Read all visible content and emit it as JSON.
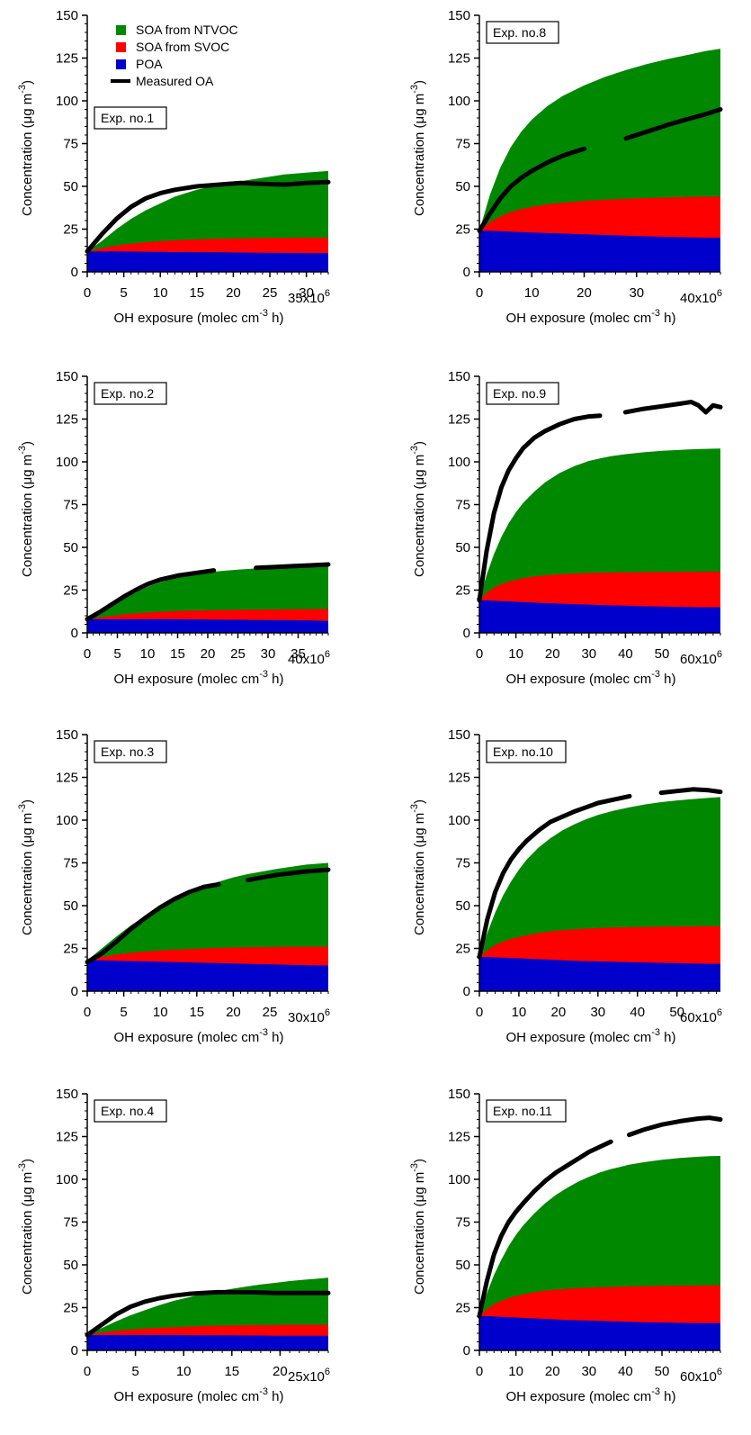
{
  "colors": {
    "ntvoc": "#008800",
    "svoc": "#ff0000",
    "poa": "#0000cc",
    "measured": "#000000",
    "frame": "#000000"
  },
  "legend": {
    "ntvoc": "SOA from NTVOC",
    "svoc": "SOA from SVOC",
    "poa": "POA",
    "measured": "Measured OA"
  },
  "axis_text": {
    "ylabel": "Concentration (μg m",
    "ylabel_sup": "-3",
    "ylabel_end": ")",
    "xlabel": "OH exposure (molec cm",
    "xlabel_sup": "-3",
    "xlabel_end": " h)",
    "multiplier_base": "x10",
    "multiplier_exp": "6"
  },
  "chart_data": [
    {
      "type": "area",
      "label": "Exp. no.1",
      "xlabel": "OH exposure (molec cm-3 h)",
      "ylabel": "Concentration (μg m-3)",
      "xlim": [
        0,
        33
      ],
      "xticks": [
        0,
        5,
        10,
        15,
        20,
        25,
        30
      ],
      "xmult": "35",
      "ylim": [
        0,
        150
      ],
      "yticks": [
        0,
        25,
        50,
        75,
        100,
        125,
        150
      ],
      "x": [
        0,
        2,
        4,
        6,
        8,
        10,
        12,
        15,
        18,
        21,
        24,
        27,
        30,
        33
      ],
      "series": [
        {
          "name": "POA",
          "values": [
            12,
            12,
            12,
            11.9,
            11.8,
            11.7,
            11.6,
            11.5,
            11.4,
            11.3,
            11.2,
            11.1,
            11.0,
            11
          ]
        },
        {
          "name": "SOA from SVOC",
          "values": [
            12,
            14,
            15.5,
            16.5,
            17.3,
            18,
            18.5,
            19,
            19.4,
            19.6,
            19.8,
            19.9,
            20,
            20
          ]
        },
        {
          "name": "SOA from NTVOC",
          "values": [
            12,
            18,
            25,
            31,
            36,
            40,
            44,
            48,
            51,
            53,
            55,
            57,
            58,
            59
          ]
        },
        {
          "name": "Measured OA",
          "values": [
            12,
            22,
            31,
            38,
            43,
            46,
            48,
            50,
            51,
            52,
            51.5,
            51,
            52,
            52.5
          ]
        }
      ]
    },
    {
      "type": "area",
      "label": "Exp. no.2",
      "xlabel": "OH exposure (molec cm-3 h)",
      "ylabel": "Concentration (μg m-3)",
      "xlim": [
        0,
        40
      ],
      "xticks": [
        0,
        5,
        10,
        15,
        20,
        25,
        30,
        35
      ],
      "xmult": "40",
      "ylim": [
        0,
        150
      ],
      "yticks": [
        0,
        25,
        50,
        75,
        100,
        125,
        150
      ],
      "x": [
        0,
        2,
        4,
        6,
        8,
        10,
        12,
        15,
        18,
        21,
        25,
        28,
        31,
        34,
        37,
        40
      ],
      "series": [
        {
          "name": "POA",
          "values": [
            8,
            8,
            8,
            8,
            8,
            8,
            8,
            8,
            7.9,
            7.8,
            7.7,
            7.6,
            7.5,
            7.4,
            7.3,
            7
          ]
        },
        {
          "name": "SOA from SVOC",
          "values": [
            8,
            9,
            10,
            10.8,
            11.4,
            11.9,
            12.3,
            12.8,
            13.1,
            13.3,
            13.5,
            13.6,
            13.7,
            13.8,
            13.9,
            14
          ]
        },
        {
          "name": "SOA from NTVOC",
          "values": [
            8,
            12,
            16,
            20,
            23.5,
            27,
            29.5,
            32.5,
            34.5,
            35.8,
            37,
            37.7,
            38.3,
            38.8,
            39.2,
            39.5
          ]
        },
        {
          "name": "Measured OA",
          "values": [
            8,
            12,
            16.5,
            21,
            25,
            28.5,
            31,
            33.5,
            35,
            36.5,
            null,
            38,
            38.5,
            39,
            39.5,
            40
          ]
        }
      ]
    },
    {
      "type": "area",
      "label": "Exp. no.3",
      "xlabel": "OH exposure (molec cm-3 h)",
      "ylabel": "Concentration (μg m-3)",
      "xlim": [
        0,
        33
      ],
      "xticks": [
        0,
        5,
        10,
        15,
        20,
        25
      ],
      "xmult": "30",
      "ylim": [
        0,
        150
      ],
      "yticks": [
        0,
        25,
        50,
        75,
        100,
        125,
        150
      ],
      "x": [
        0,
        2,
        4,
        6,
        8,
        10,
        12,
        14,
        16,
        18,
        20,
        22,
        24,
        26,
        28,
        30,
        33
      ],
      "series": [
        {
          "name": "POA",
          "values": [
            18,
            18,
            17.8,
            17.6,
            17.4,
            17.2,
            17,
            16.8,
            16.6,
            16.4,
            16.2,
            16,
            15.8,
            15.6,
            15.4,
            15.2,
            15
          ]
        },
        {
          "name": "SOA from SVOC",
          "values": [
            18,
            20,
            21.5,
            22.5,
            23.2,
            23.8,
            24.3,
            24.7,
            25,
            25.3,
            25.5,
            25.7,
            25.8,
            25.9,
            26,
            26,
            26
          ]
        },
        {
          "name": "SOA from NTVOC",
          "values": [
            18,
            25,
            32,
            38.5,
            44,
            49,
            53.5,
            57.5,
            61,
            64,
            66.5,
            68.5,
            70,
            71.5,
            72.8,
            74,
            75
          ]
        },
        {
          "name": "Measured OA",
          "values": [
            17,
            22,
            29,
            36.5,
            43,
            49,
            54,
            58,
            61,
            62.5,
            null,
            65,
            66.5,
            68,
            69,
            70,
            71
          ]
        }
      ]
    },
    {
      "type": "area",
      "label": "Exp. no.4",
      "xlabel": "OH exposure (molec cm-3 h)",
      "ylabel": "Concentration (μg m-3)",
      "xlim": [
        0,
        25
      ],
      "xticks": [
        0,
        5,
        10,
        15,
        20
      ],
      "xmult": "25",
      "ylim": [
        0,
        150
      ],
      "yticks": [
        0,
        25,
        50,
        75,
        100,
        125,
        150
      ],
      "x": [
        0,
        1.5,
        3,
        4.5,
        6,
        7.5,
        9,
        10.5,
        12,
        13.5,
        15,
        16.5,
        18,
        19.5,
        21,
        22.5,
        24,
        25
      ],
      "series": [
        {
          "name": "POA",
          "values": [
            9,
            9,
            9,
            9,
            9,
            9,
            9,
            8.9,
            8.9,
            8.8,
            8.8,
            8.7,
            8.7,
            8.6,
            8.6,
            8.5,
            8.5,
            8.5
          ]
        },
        {
          "name": "SOA from SVOC",
          "values": [
            9,
            10.5,
            11.5,
            12.2,
            12.8,
            13.2,
            13.6,
            13.9,
            14.2,
            14.4,
            14.6,
            14.7,
            14.8,
            14.9,
            15,
            15,
            15,
            15
          ]
        },
        {
          "name": "SOA from NTVOC",
          "values": [
            9,
            13,
            17,
            20.5,
            23.5,
            26.5,
            29,
            31,
            33,
            34.5,
            36,
            37.3,
            38.5,
            39.5,
            40.5,
            41.3,
            42,
            42.5
          ]
        },
        {
          "name": "Measured OA",
          "values": [
            9,
            15,
            21,
            25.5,
            28.5,
            30.5,
            32,
            33,
            33.5,
            34,
            34,
            34,
            33.8,
            33.5,
            33.5,
            33.5,
            33.5,
            33.5
          ]
        }
      ]
    },
    {
      "type": "area",
      "label": "Exp. no.8",
      "xlabel": "OH exposure (molec cm-3 h)",
      "ylabel": "Concentration (μg m-3)",
      "xlim": [
        0,
        46
      ],
      "xticks": [
        0,
        10,
        20,
        30
      ],
      "xmult": "40",
      "ylim": [
        0,
        150
      ],
      "yticks": [
        0,
        25,
        50,
        75,
        100,
        125,
        150
      ],
      "x": [
        0,
        2,
        4,
        6,
        8,
        10,
        13,
        16,
        20,
        24,
        28,
        32,
        36,
        40,
        43,
        46
      ],
      "series": [
        {
          "name": "POA",
          "values": [
            24,
            24,
            23.8,
            23.5,
            23.3,
            23,
            22.7,
            22.4,
            22,
            21.6,
            21.2,
            20.8,
            20.5,
            20.2,
            20,
            20
          ]
        },
        {
          "name": "SOA from SVOC",
          "values": [
            24,
            29,
            32.5,
            35,
            36.8,
            38,
            39.5,
            40.5,
            41.5,
            42.2,
            42.8,
            43.2,
            43.5,
            43.8,
            44,
            44
          ]
        },
        {
          "name": "SOA from NTVOC",
          "values": [
            24,
            45,
            61,
            73,
            82,
            89,
            97,
            103,
            109,
            114,
            118,
            121.5,
            124.5,
            127,
            129,
            130.5
          ]
        },
        {
          "name": "Measured OA",
          "values": [
            24,
            34,
            43,
            50,
            55,
            59,
            64,
            68,
            72,
            null,
            78,
            82,
            86,
            89.5,
            92,
            95
          ]
        }
      ]
    },
    {
      "type": "area",
      "label": "Exp. no.9",
      "xlabel": "OH exposure (molec cm-3 h)",
      "ylabel": "Concentration (μg m-3)",
      "xlim": [
        0,
        66
      ],
      "xticks": [
        0,
        10,
        20,
        30,
        40,
        50
      ],
      "xmult": "60",
      "ylim": [
        0,
        150
      ],
      "yticks": [
        0,
        25,
        50,
        75,
        100,
        125,
        150
      ],
      "x": [
        0,
        2,
        4,
        6,
        8,
        10,
        12,
        15,
        18,
        22,
        26,
        30,
        33,
        36,
        40,
        45,
        50,
        55,
        58,
        60,
        62,
        64,
        66
      ],
      "series": [
        {
          "name": "POA",
          "values": [
            19,
            19,
            18.8,
            18.6,
            18.4,
            18.2,
            18,
            17.7,
            17.4,
            17.1,
            16.8,
            16.5,
            16.3,
            16.1,
            15.9,
            15.6,
            15.4,
            15.2,
            15.1,
            15,
            15,
            15,
            15
          ]
        },
        {
          "name": "SOA from SVOC",
          "values": [
            19,
            23.5,
            26.5,
            28.5,
            30,
            31,
            32,
            33,
            33.7,
            34.3,
            34.7,
            35,
            35.2,
            35.3,
            35.4,
            35.5,
            35.6,
            35.7,
            35.8,
            35.8,
            35.8,
            35.8,
            35.8
          ]
        },
        {
          "name": "SOA from NTVOC",
          "values": [
            19,
            34,
            46,
            56,
            64,
            70.5,
            76,
            82.5,
            88,
            93.5,
            97.5,
            100.5,
            102,
            103.3,
            104.5,
            105.6,
            106.4,
            107,
            107.3,
            107.5,
            107.6,
            107.7,
            107.8
          ]
        },
        {
          "name": "Measured OA",
          "values": [
            19,
            48,
            70,
            85,
            95,
            102,
            108,
            114,
            118,
            122,
            125,
            126.5,
            127,
            null,
            129,
            131,
            132.5,
            134,
            135,
            133,
            129,
            133,
            132
          ]
        }
      ]
    },
    {
      "type": "area",
      "label": "Exp. no.10",
      "xlabel": "OH exposure (molec cm-3 h)",
      "ylabel": "Concentration (μg m-3)",
      "xlim": [
        0,
        61
      ],
      "xticks": [
        0,
        10,
        20,
        30,
        40,
        50
      ],
      "xmult": "60",
      "ylim": [
        0,
        150
      ],
      "yticks": [
        0,
        25,
        50,
        75,
        100,
        125,
        150
      ],
      "x": [
        0,
        2,
        4,
        6,
        8,
        10,
        12,
        15,
        18,
        21,
        24,
        27,
        30,
        34,
        38,
        42,
        46,
        50,
        54,
        58,
        61
      ],
      "series": [
        {
          "name": "POA",
          "values": [
            20,
            20,
            19.8,
            19.6,
            19.4,
            19.2,
            19,
            18.7,
            18.4,
            18.1,
            17.8,
            17.6,
            17.4,
            17.2,
            17,
            16.8,
            16.6,
            16.4,
            16.2,
            16,
            16
          ]
        },
        {
          "name": "SOA from SVOC",
          "values": [
            20,
            24,
            27,
            29,
            30.6,
            31.8,
            32.8,
            34,
            35,
            35.7,
            36.2,
            36.6,
            36.9,
            37.2,
            37.4,
            37.6,
            37.7,
            37.8,
            37.9,
            38,
            38
          ]
        },
        {
          "name": "SOA from NTVOC",
          "values": [
            20,
            34,
            46,
            56,
            64,
            71,
            77,
            84,
            89.5,
            94,
            97.5,
            100.5,
            103,
            105.5,
            107.5,
            109.2,
            110.5,
            111.5,
            112.3,
            113,
            113.5
          ]
        },
        {
          "name": "Measured OA",
          "values": [
            20,
            42,
            58,
            69,
            77,
            83,
            88,
            94,
            99,
            102,
            105,
            107.5,
            110,
            112,
            114,
            null,
            116,
            117,
            118,
            117.5,
            116.5
          ]
        }
      ]
    },
    {
      "type": "area",
      "label": "Exp. no.11",
      "xlabel": "OH exposure (molec cm-3 h)",
      "ylabel": "Concentration (μg m-3)",
      "xlim": [
        0,
        66
      ],
      "xticks": [
        0,
        10,
        20,
        30,
        40,
        50
      ],
      "xmult": "60",
      "ylim": [
        0,
        150
      ],
      "yticks": [
        0,
        25,
        50,
        75,
        100,
        125,
        150
      ],
      "x": [
        0,
        2,
        4,
        6,
        8,
        10,
        12,
        15,
        18,
        21,
        24,
        27,
        30,
        33,
        36,
        38,
        41,
        45,
        50,
        55,
        60,
        63,
        66
      ],
      "series": [
        {
          "name": "POA",
          "values": [
            20,
            20,
            19.8,
            19.6,
            19.4,
            19.2,
            19,
            18.7,
            18.4,
            18.1,
            17.8,
            17.6,
            17.4,
            17.2,
            17,
            16.9,
            16.7,
            16.5,
            16.3,
            16.1,
            16,
            16,
            16
          ]
        },
        {
          "name": "SOA from SVOC",
          "values": [
            20,
            24,
            27,
            29,
            30.6,
            31.8,
            32.8,
            34,
            35,
            35.6,
            36,
            36.4,
            36.7,
            36.9,
            37.1,
            37.2,
            37.4,
            37.5,
            37.7,
            37.8,
            37.9,
            38,
            38
          ]
        },
        {
          "name": "SOA from NTVOC",
          "values": [
            20,
            33,
            44,
            53,
            61,
            67.5,
            73,
            80,
            86,
            91,
            95,
            98.5,
            101.5,
            104,
            106,
            107,
            108.5,
            110,
            111.5,
            112.5,
            113.2,
            113.5,
            113.7
          ]
        },
        {
          "name": "Measured OA",
          "values": [
            20,
            40,
            56,
            67,
            75,
            81,
            86,
            93,
            99,
            104,
            108,
            112,
            116,
            119,
            122,
            null,
            126,
            129,
            132,
            134,
            135.5,
            136,
            135
          ]
        }
      ]
    }
  ]
}
